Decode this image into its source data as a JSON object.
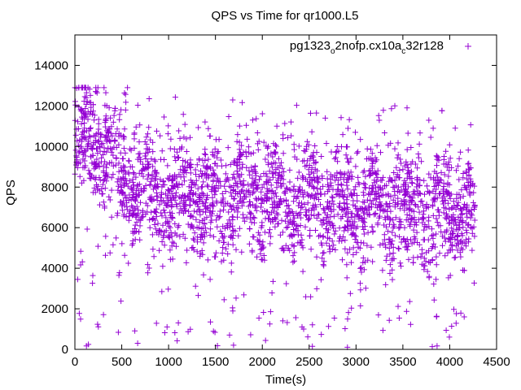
{
  "chart_data": {
    "type": "scatter",
    "title": "QPS vs Time for qr1000.L5",
    "xlabel": "Time(s)",
    "ylabel": "QPS",
    "xlim": [
      0,
      4500
    ],
    "ylim": [
      0,
      15500
    ],
    "x_ticks": [
      0,
      500,
      1000,
      1500,
      2000,
      2500,
      3000,
      3500,
      4000,
      4500
    ],
    "y_ticks": [
      0,
      2000,
      4000,
      6000,
      8000,
      10000,
      12000,
      14000
    ],
    "grid": false,
    "legend_position": "top-right",
    "marker": "+",
    "color": "#9400d3",
    "series": [
      {
        "name": "pg1323_o2nofp.cx10a_c32r128",
        "legend_main_1": "pg1323",
        "legend_sub_1": "o",
        "legend_main_2": "2nofp.cx10a",
        "legend_sub_2": "c",
        "legend_main_3": "32r128",
        "x_range": [
          0,
          4270
        ],
        "trend": [
          [
            0,
            10400
          ],
          [
            100,
            10600
          ],
          [
            200,
            10400
          ],
          [
            300,
            9800
          ],
          [
            400,
            9200
          ],
          [
            500,
            8600
          ],
          [
            700,
            7800
          ],
          [
            1000,
            7600
          ],
          [
            1500,
            7400
          ],
          [
            2000,
            7400
          ],
          [
            2500,
            7400
          ],
          [
            3000,
            7200
          ],
          [
            3500,
            7000
          ],
          [
            4000,
            6900
          ],
          [
            4270,
            6800
          ]
        ],
        "spread": 1300,
        "outlier_min": 0,
        "outlier_max": 12900
      }
    ]
  }
}
